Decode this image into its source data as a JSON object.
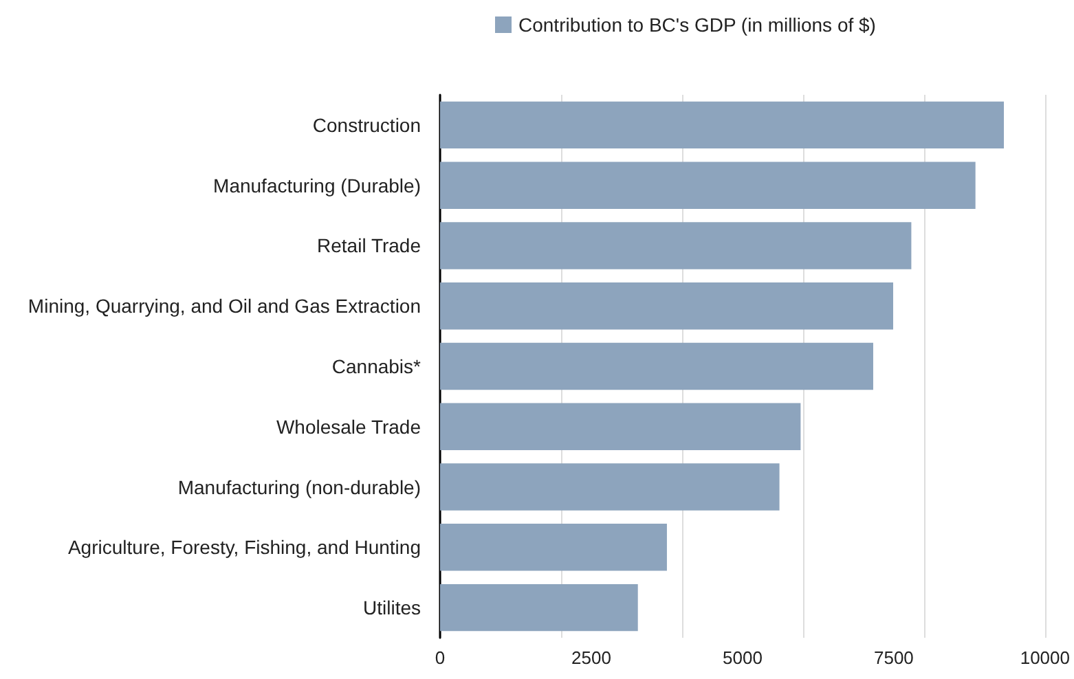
{
  "chart_data": {
    "type": "bar",
    "orientation": "horizontal",
    "categories": [
      "Construction",
      "Manufacturing (Durable)",
      "Retail Trade",
      "Mining, Quarrying, and Oil and Gas Extraction",
      "Cannabis*",
      "Wholesale Trade",
      "Manufacturing (non-durable)",
      "Agriculture, Foresty, Fishing, and Hunting",
      "Utilites"
    ],
    "series": [
      {
        "name": "Contribution to BC's GDP (in millions of $)",
        "color": "#8da4bd",
        "values": [
          9320,
          8850,
          7790,
          7490,
          7160,
          5960,
          5610,
          3750,
          3270
        ]
      }
    ],
    "xlim": [
      0,
      10000
    ],
    "xticks": [
      0,
      2500,
      5000,
      7500,
      10000
    ],
    "grid": "x",
    "legend": "top"
  }
}
